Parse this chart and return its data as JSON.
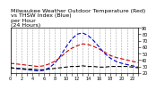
{
  "hours": [
    0,
    1,
    2,
    3,
    4,
    5,
    6,
    7,
    8,
    9,
    10,
    11,
    12,
    13,
    14,
    15,
    16,
    17,
    18,
    19,
    20,
    21,
    22,
    23
  ],
  "temp_red": [
    35,
    34,
    33,
    32,
    31,
    30,
    31,
    34,
    38,
    44,
    52,
    58,
    62,
    65,
    64,
    61,
    57,
    52,
    47,
    44,
    42,
    40,
    38,
    36
  ],
  "thsw_blue": [
    28,
    27,
    26,
    25,
    24,
    23,
    24,
    28,
    35,
    46,
    60,
    72,
    80,
    82,
    78,
    70,
    60,
    50,
    43,
    38,
    35,
    33,
    31,
    29
  ],
  "dew_black": [
    28,
    27,
    27,
    26,
    26,
    25,
    25,
    26,
    27,
    28,
    29,
    30,
    30,
    31,
    30,
    30,
    29,
    29,
    30,
    30,
    30,
    30,
    29,
    28
  ],
  "background": "#ffffff",
  "line_color_red": "#cc0000",
  "line_color_blue": "#0000cc",
  "line_color_black": "#000000",
  "ylim": [
    20,
    90
  ],
  "xlim": [
    0,
    23
  ],
  "grid_color": "#aaaaaa",
  "title_fontsize": 4.5,
  "tick_fontsize": 3.5,
  "title": "Milwaukee Weather Outdoor Temperature (Red)\nvs THSW Index (Blue)\nper Hour\n(24 Hours)"
}
